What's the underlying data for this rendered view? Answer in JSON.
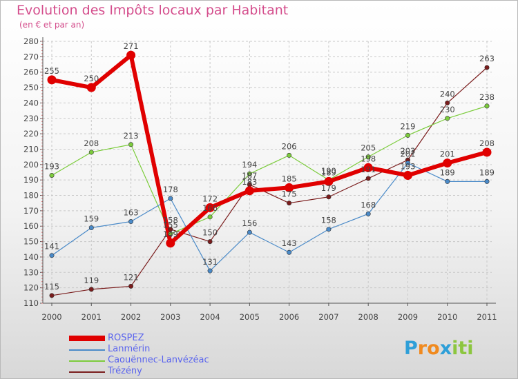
{
  "title": "Evolution des Impôts locaux par Habitant",
  "subtitle": "(en € et par an)",
  "logo": {
    "letters": [
      "P",
      "r",
      "o",
      "x",
      "i",
      "t",
      "i"
    ],
    "colors": [
      "#2e9fd8",
      "#f08a1f",
      "#f08a1f",
      "#2e9fd8",
      "#8cc63f",
      "#8cc63f",
      "#8cc63f"
    ]
  },
  "colors": {
    "title": "#d44d8c",
    "axis": "#555555",
    "grid": "#c8c8c8",
    "label": "#444444",
    "legend_text": "#5a64ee"
  },
  "chart_data": {
    "type": "line",
    "title": "Evolution des Impôts locaux par Habitant",
    "subtitle": "(en € et par an)",
    "xlabel": "",
    "ylabel": "",
    "categories": [
      "2000",
      "2001",
      "2002",
      "2003",
      "2004",
      "2005",
      "2006",
      "2007",
      "2008",
      "2009",
      "2010",
      "2011"
    ],
    "ylim": [
      110,
      280
    ],
    "yticks": [
      110,
      120,
      130,
      140,
      150,
      160,
      170,
      180,
      190,
      200,
      210,
      220,
      230,
      240,
      250,
      260,
      270,
      280
    ],
    "grid": "dashed",
    "legend_position": "bottom-left",
    "series": [
      {
        "name": "ROSPEZ",
        "color": "#e00000",
        "width": 6,
        "marker": 6.5,
        "values": [
          255,
          250,
          271,
          149,
          172,
          183,
          185,
          189,
          198,
          193,
          201,
          208
        ],
        "labels": [
          "255",
          "250",
          "271",
          "149",
          "172",
          "183",
          "185",
          "189",
          "198",
          "193",
          "201",
          "208"
        ]
      },
      {
        "name": "Lanmérin",
        "color": "#4a8ac8",
        "width": 1.2,
        "marker": 3.2,
        "values": [
          141,
          159,
          163,
          178,
          131,
          156,
          143,
          158,
          168,
          201,
          189,
          189
        ],
        "labels": [
          "141",
          "159",
          "163",
          "178",
          "131",
          "156",
          "143",
          "158",
          "168",
          "201",
          "189",
          "189"
        ]
      },
      {
        "name": "Caouënnec-Lanvézéac",
        "color": "#7ccc3c",
        "width": 1.2,
        "marker": 3.2,
        "values": [
          193,
          208,
          213,
          155,
          166,
          194,
          206,
          190,
          205,
          219,
          230,
          238
        ],
        "labels": [
          "193",
          "208",
          "213",
          "155",
          "166",
          "194",
          "206",
          "190",
          "205",
          "219",
          "230",
          "238"
        ]
      },
      {
        "name": "Trézény",
        "color": "#7a1c1c",
        "width": 1.2,
        "marker": 3.2,
        "values": [
          115,
          119,
          121,
          158,
          150,
          187,
          175,
          179,
          191,
          203,
          240,
          263
        ],
        "labels": [
          "115",
          "119",
          "121",
          "158",
          "150",
          "187",
          "175",
          "179",
          "191",
          "203",
          "240",
          "263"
        ]
      }
    ]
  }
}
